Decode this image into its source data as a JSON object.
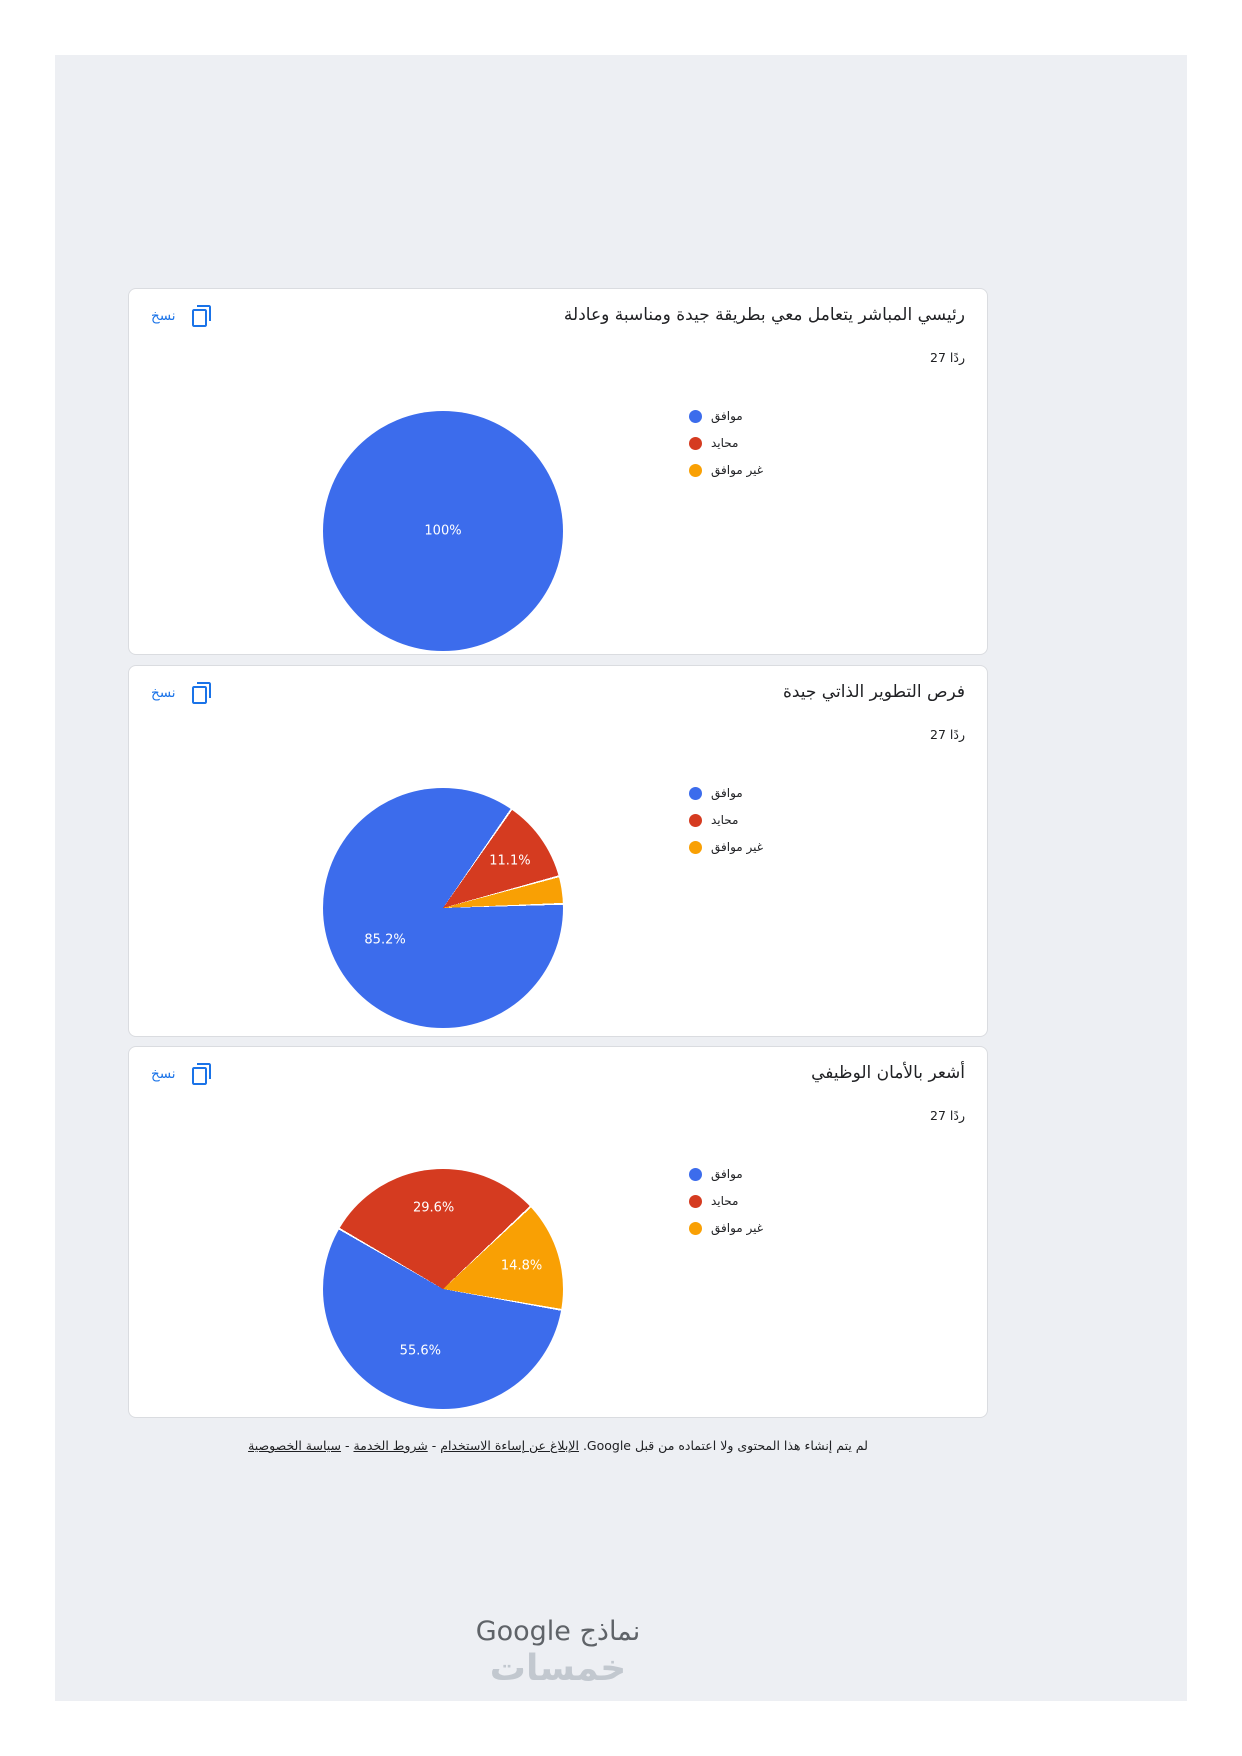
{
  "colors": {
    "chart_blue": "#3c6cec",
    "chart_red": "#d53b20",
    "chart_orange": "#f9a004",
    "link_blue": "#1a73e8",
    "panel_bg": "#edeff3"
  },
  "icons": {
    "copy_icon": "content-copy"
  },
  "cards": [
    {
      "title": "رئيسي المباشر يتعامل معي بطريقة جيدة ومناسبة وعادلة",
      "responses": "27 ردًا",
      "copy_label": "نسخ"
    },
    {
      "title": "فرص التطوير الذاتي جيدة",
      "responses": "27 ردًا",
      "copy_label": "نسخ"
    },
    {
      "title": "أشعر بالأمان الوظيفي",
      "responses": "27 ردًا",
      "copy_label": "نسخ"
    }
  ],
  "chart_data": [
    {
      "type": "pie",
      "title": "رئيسي المباشر يتعامل معي بطريقة جيدة ومناسبة وعادلة",
      "responses": "27 ردًا",
      "categories": [
        "موافق",
        "محايد",
        "غير موافق"
      ],
      "values": [
        100,
        0,
        0
      ],
      "slice_labels": [
        "100%",
        "",
        ""
      ],
      "colors": [
        "#3c6cec",
        "#d53b20",
        "#f9a004"
      ],
      "legend_position": "right",
      "rotate": 0
    },
    {
      "type": "pie",
      "title": "فرص التطوير الذاتي جيدة",
      "responses": "27 ردًا",
      "categories": [
        "موافق",
        "محايد",
        "غير موافق"
      ],
      "values": [
        85.2,
        11.1,
        3.7
      ],
      "slice_labels": [
        "85.2%",
        "11.1%",
        ""
      ],
      "colors": [
        "#3c6cec",
        "#d53b20",
        "#f9a004"
      ],
      "legend_position": "right",
      "rotate": 88
    },
    {
      "type": "pie",
      "title": "أشعر بالأمان الوظيفي",
      "responses": "27 ردًا",
      "categories": [
        "موافق",
        "محايد",
        "غير موافق"
      ],
      "values": [
        55.6,
        29.6,
        14.8
      ],
      "slice_labels": [
        "55.6%",
        "29.6%",
        "14.8%"
      ],
      "colors": [
        "#3c6cec",
        "#d53b20",
        "#f9a004"
      ],
      "legend_position": "right",
      "rotate": 100
    }
  ],
  "footer": {
    "parts": [
      {
        "text": "لم يتم إنشاء هذا المحتوى ولا اعتماده من قبل Google. "
      },
      {
        "text": "الإبلاغ عن إساءة الاستخدام"
      },
      {
        "text": " - "
      },
      {
        "text": "شروط الخدمة"
      },
      {
        "text": " - "
      },
      {
        "text": "سياسة الخصوصية"
      }
    ]
  },
  "logo": {
    "text": "نماذج Google"
  },
  "watermark": {
    "text": "خمسات"
  }
}
